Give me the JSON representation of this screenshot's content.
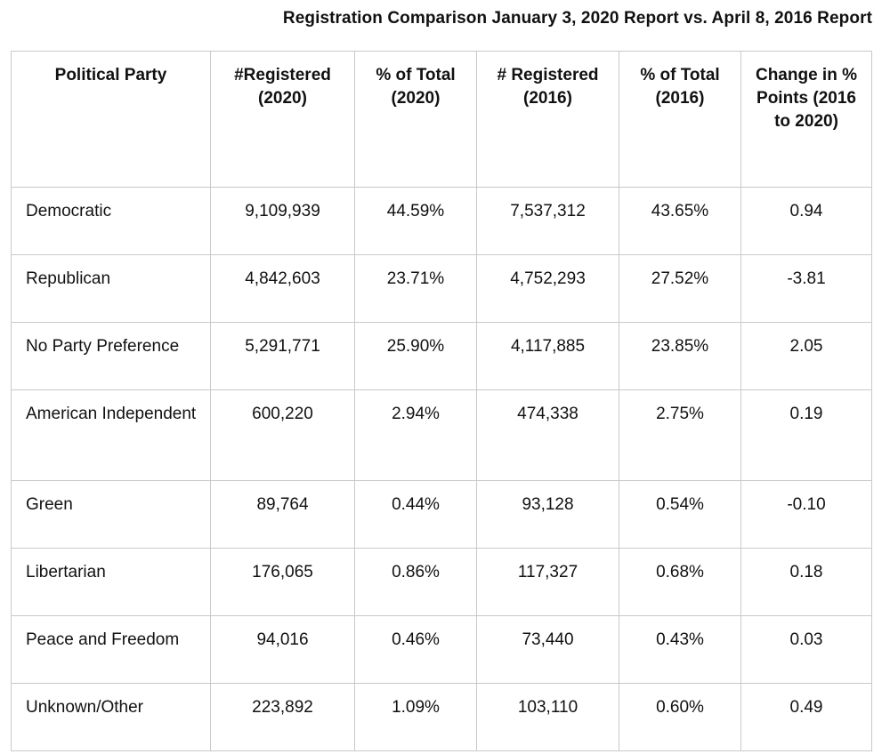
{
  "caption": "Registration Comparison January 3, 2020 Report vs. April 8, 2016 Report",
  "table": {
    "headers": [
      "Political Party",
      "#Registered (2020)",
      "% of Total (2020)",
      "# Registered (2016)",
      "% of Total (2016)",
      "Change in % Points (2016 to 2020)"
    ],
    "rows": [
      [
        "Democratic",
        "9,109,939",
        "44.59%",
        "7,537,312",
        "43.65%",
        "0.94"
      ],
      [
        "Republican",
        "4,842,603",
        "23.71%",
        "4,752,293",
        "27.52%",
        "-3.81"
      ],
      [
        "No Party Preference",
        "5,291,771",
        "25.90%",
        "4,117,885",
        "23.85%",
        "2.05"
      ],
      [
        "American Independent",
        "600,220",
        "2.94%",
        "474,338",
        "2.75%",
        "0.19"
      ],
      [
        "Green",
        "89,764",
        "0.44%",
        "93,128",
        "0.54%",
        "-0.10"
      ],
      [
        "Libertarian",
        "176,065",
        "0.86%",
        "117,327",
        "0.68%",
        "0.18"
      ],
      [
        "Peace and Freedom",
        "94,016",
        "0.46%",
        "73,440",
        "0.43%",
        "0.03"
      ],
      [
        "Unknown/Other",
        "223,892",
        "1.09%",
        "103,110",
        "0.60%",
        "0.49"
      ]
    ]
  }
}
